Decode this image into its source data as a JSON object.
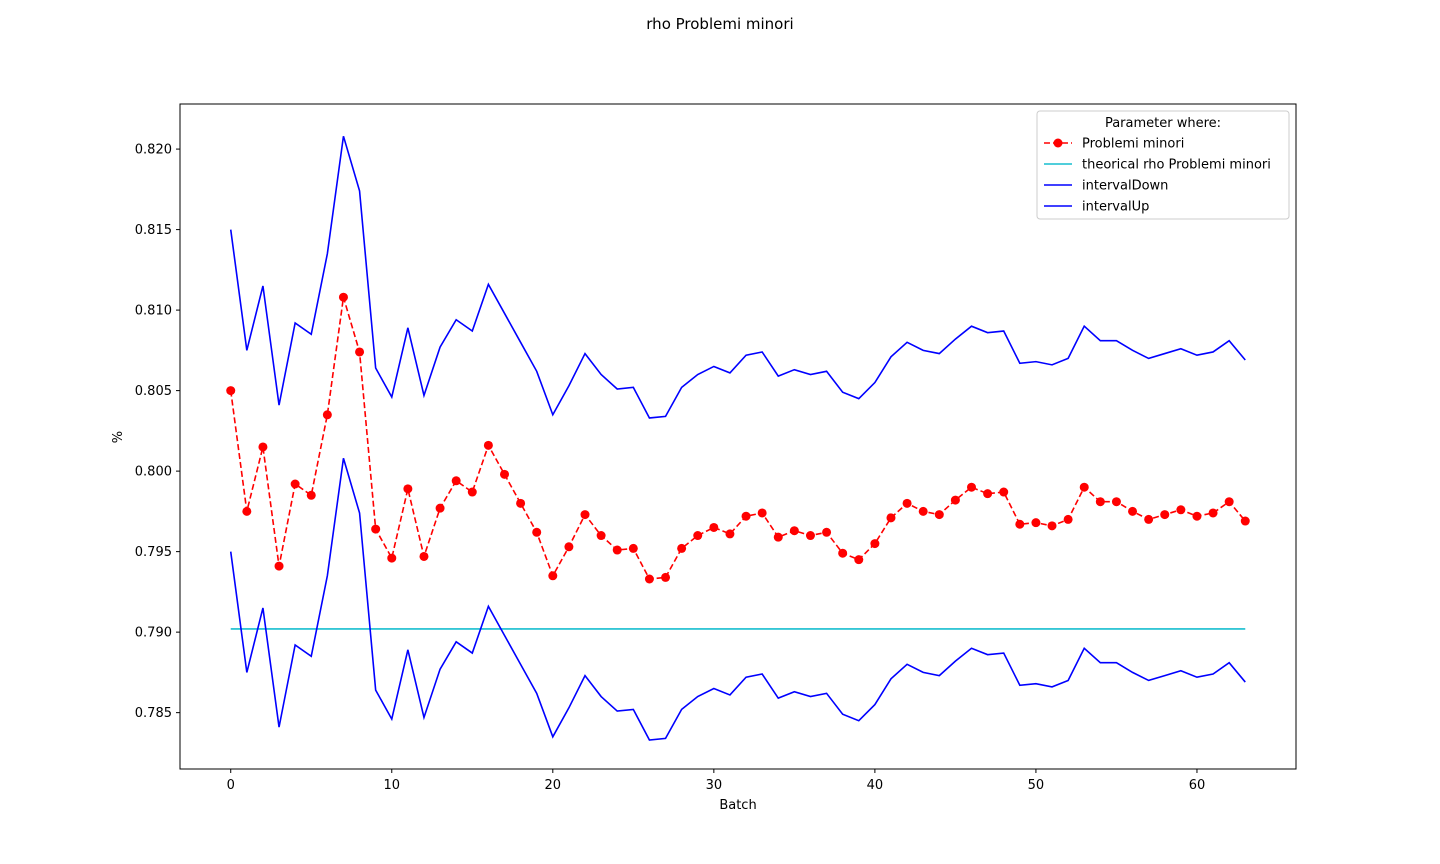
{
  "chart_data": {
    "type": "line",
    "title": "rho Problemi minori",
    "xlabel": "Batch",
    "ylabel": "%",
    "xlim": [
      -3.15,
      66.15
    ],
    "ylim": [
      0.7815,
      0.8228
    ],
    "xticks": [
      0,
      10,
      20,
      30,
      40,
      50,
      60
    ],
    "yticks": [
      0.785,
      0.79,
      0.795,
      0.8,
      0.805,
      0.81,
      0.815,
      0.82
    ],
    "grid": false,
    "legend": {
      "title": "Parameter where:",
      "placement": "top-right"
    },
    "series": [
      {
        "name": "Problemi minori",
        "color": "#ff0000",
        "style": "dashed-markers",
        "values": [
          0.805,
          0.7975,
          0.8015,
          0.7941,
          0.7992,
          0.7985,
          0.8035,
          0.8108,
          0.8074,
          0.7964,
          0.7946,
          0.7989,
          0.7947,
          0.7977,
          0.7994,
          0.7987,
          0.8016,
          0.7998,
          0.798,
          0.7962,
          0.7935,
          0.7953,
          0.7973,
          0.796,
          0.7951,
          0.7952,
          0.7933,
          0.7934,
          0.7952,
          0.796,
          0.7965,
          0.7961,
          0.7972,
          0.7974,
          0.7959,
          0.7963,
          0.796,
          0.7962,
          0.7949,
          0.7945,
          0.7955,
          0.7971,
          0.798,
          0.7975,
          0.7973,
          0.7982,
          0.799,
          0.7986,
          0.7987,
          0.7967,
          0.7968,
          0.7966,
          0.797,
          0.799,
          0.7981,
          0.7981,
          0.7975,
          0.797,
          0.7973,
          0.7976,
          0.7972,
          0.7974,
          0.7981,
          0.7969
        ]
      },
      {
        "name": "theorical rho Problemi minori",
        "color": "#17becf",
        "style": "solid",
        "values": [
          0.7902,
          0.7902,
          0.7902,
          0.7902,
          0.7902,
          0.7902,
          0.7902,
          0.7902,
          0.7902,
          0.7902,
          0.7902,
          0.7902,
          0.7902,
          0.7902,
          0.7902,
          0.7902,
          0.7902,
          0.7902,
          0.7902,
          0.7902,
          0.7902,
          0.7902,
          0.7902,
          0.7902,
          0.7902,
          0.7902,
          0.7902,
          0.7902,
          0.7902,
          0.7902,
          0.7902,
          0.7902,
          0.7902,
          0.7902,
          0.7902,
          0.7902,
          0.7902,
          0.7902,
          0.7902,
          0.7902,
          0.7902,
          0.7902,
          0.7902,
          0.7902,
          0.7902,
          0.7902,
          0.7902,
          0.7902,
          0.7902,
          0.7902,
          0.7902,
          0.7902,
          0.7902,
          0.7902,
          0.7902,
          0.7902,
          0.7902,
          0.7902,
          0.7902,
          0.7902,
          0.7902,
          0.7902,
          0.7902,
          0.7902
        ]
      },
      {
        "name": "intervalDown",
        "color": "#0000ff",
        "style": "solid",
        "values": [
          0.795,
          0.7875,
          0.7915,
          0.7841,
          0.7892,
          0.7885,
          0.7935,
          0.8008,
          0.7974,
          0.7864,
          0.7846,
          0.7889,
          0.7847,
          0.7877,
          0.7894,
          0.7887,
          0.7916,
          0.7898,
          0.788,
          0.7862,
          0.7835,
          0.7853,
          0.7873,
          0.786,
          0.7851,
          0.7852,
          0.7833,
          0.7834,
          0.7852,
          0.786,
          0.7865,
          0.7861,
          0.7872,
          0.7874,
          0.7859,
          0.7863,
          0.786,
          0.7862,
          0.7849,
          0.7845,
          0.7855,
          0.7871,
          0.788,
          0.7875,
          0.7873,
          0.7882,
          0.789,
          0.7886,
          0.7887,
          0.7867,
          0.7868,
          0.7866,
          0.787,
          0.789,
          0.7881,
          0.7881,
          0.7875,
          0.787,
          0.7873,
          0.7876,
          0.7872,
          0.7874,
          0.7881,
          0.7869
        ]
      },
      {
        "name": "intervalUp",
        "color": "#0000ff",
        "style": "solid",
        "values": [
          0.815,
          0.8075,
          0.8115,
          0.8041,
          0.8092,
          0.8085,
          0.8135,
          0.8208,
          0.8174,
          0.8064,
          0.8046,
          0.8089,
          0.8047,
          0.8077,
          0.8094,
          0.8087,
          0.8116,
          0.8098,
          0.808,
          0.8062,
          0.8035,
          0.8053,
          0.8073,
          0.806,
          0.8051,
          0.8052,
          0.8033,
          0.8034,
          0.8052,
          0.806,
          0.8065,
          0.8061,
          0.8072,
          0.8074,
          0.8059,
          0.8063,
          0.806,
          0.8062,
          0.8049,
          0.8045,
          0.8055,
          0.8071,
          0.808,
          0.8075,
          0.8073,
          0.8082,
          0.809,
          0.8086,
          0.8087,
          0.8067,
          0.8068,
          0.8066,
          0.807,
          0.809,
          0.8081,
          0.8081,
          0.8075,
          0.807,
          0.8073,
          0.8076,
          0.8072,
          0.8074,
          0.8081,
          0.8069
        ]
      }
    ]
  }
}
